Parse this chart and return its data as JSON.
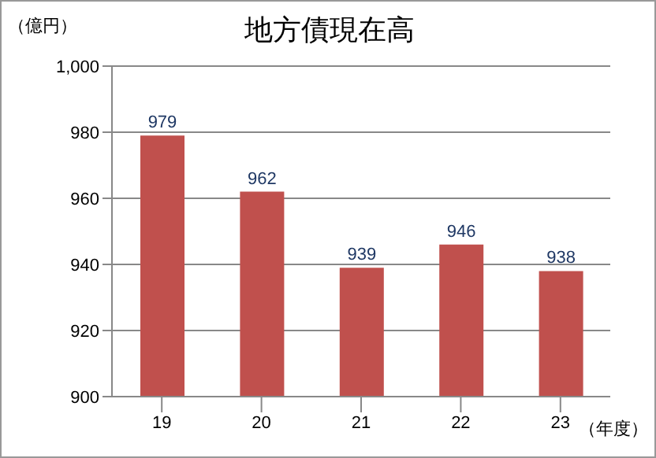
{
  "chart_data": {
    "type": "bar",
    "title": "地方債現在高",
    "ylabel": "（億円）",
    "xlabel": "（年度）",
    "categories": [
      "19",
      "20",
      "21",
      "22",
      "23"
    ],
    "values": [
      979,
      962,
      939,
      946,
      938
    ],
    "color": "#c0504d",
    "ylim": [
      900,
      1000
    ],
    "yticks": [
      900,
      920,
      940,
      960,
      980,
      {
        "value": 1000,
        "label": "1,000"
      }
    ],
    "grid": "y",
    "data_labels": true
  }
}
